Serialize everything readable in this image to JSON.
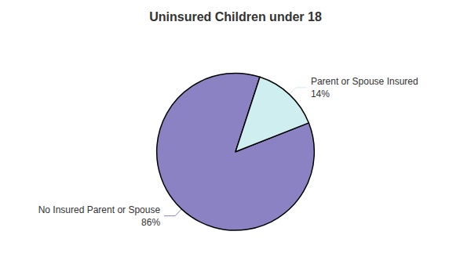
{
  "chart_data": {
    "type": "pie",
    "title": "Uninsured Children under 18",
    "categories": [
      "No Insured Parent or Spouse",
      "Parent or Spouse Insured"
    ],
    "values": [
      86,
      14
    ],
    "value_labels": [
      "86%",
      "14%"
    ],
    "data_labels": true,
    "colors": [
      "#8b82c4",
      "#ceeef0"
    ]
  }
}
